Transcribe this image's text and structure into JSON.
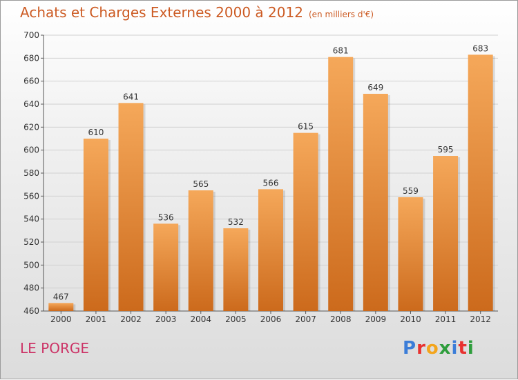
{
  "title": "Achats et Charges Externes 2000 à 2012",
  "subtitle": "(en milliers d'€)",
  "commune": "LE PORGE",
  "logo": {
    "text": "Proxiti",
    "letters": [
      {
        "char": "P",
        "color": "#3b7dd8"
      },
      {
        "char": "r",
        "color": "#e8312f"
      },
      {
        "char": "o",
        "color": "#f3a51d"
      },
      {
        "char": "x",
        "color": "#2e9d3c"
      },
      {
        "char": "i",
        "color": "#3b7dd8"
      },
      {
        "char": "t",
        "color": "#e8312f"
      },
      {
        "char": "i",
        "color": "#2e9d3c"
      }
    ]
  },
  "colors": {
    "bar_top": "#f5a85a",
    "bar_bottom": "#cc6a1c",
    "accent": "#cc5a22",
    "grid": "#d0d0d0"
  },
  "chart_data": {
    "type": "bar",
    "categories": [
      "2000",
      "2001",
      "2002",
      "2003",
      "2004",
      "2005",
      "2006",
      "2007",
      "2008",
      "2009",
      "2010",
      "2011",
      "2012"
    ],
    "values": [
      467,
      610,
      641,
      536,
      565,
      532,
      566,
      615,
      681,
      649,
      559,
      595,
      683
    ],
    "ylim": [
      460,
      700
    ],
    "yticks": [
      460,
      480,
      500,
      520,
      540,
      560,
      580,
      600,
      620,
      640,
      660,
      680,
      700
    ],
    "grid": true,
    "xlabel": "",
    "ylabel": ""
  }
}
